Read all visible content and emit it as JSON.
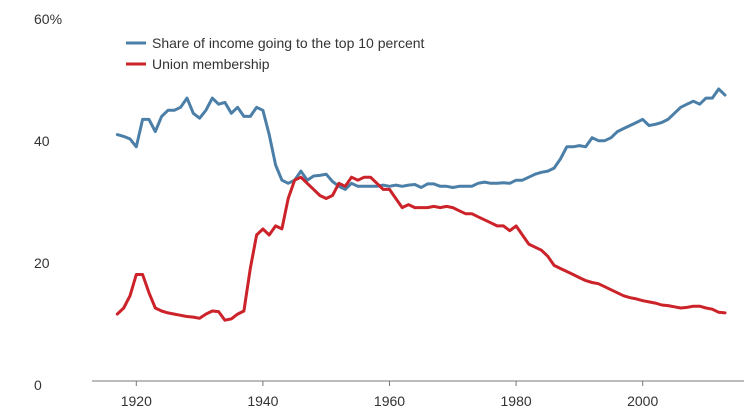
{
  "chart_data": {
    "type": "line",
    "xlim": [
      1913,
      2016
    ],
    "ylim": [
      0,
      60
    ],
    "xticks": [
      1920,
      1940,
      1960,
      1980,
      2000
    ],
    "xtick_labels": [
      "1920",
      "1940",
      "1960",
      "1980",
      "2000"
    ],
    "yticks": [
      0,
      20,
      40,
      60
    ],
    "ytick_labels": [
      "0",
      "20",
      "40",
      "60%"
    ],
    "grid": false,
    "legend_position": "top-left",
    "series": [
      {
        "name": "Share of income going to the top 10 percent",
        "color": "#4b7fa7",
        "points": [
          [
            1917,
            40.5
          ],
          [
            1918,
            40.2
          ],
          [
            1919,
            39.8
          ],
          [
            1920,
            38.5
          ],
          [
            1921,
            43.0
          ],
          [
            1922,
            43.0
          ],
          [
            1923,
            41.0
          ],
          [
            1924,
            43.5
          ],
          [
            1925,
            44.5
          ],
          [
            1926,
            44.5
          ],
          [
            1927,
            45.0
          ],
          [
            1928,
            46.5
          ],
          [
            1929,
            44.0
          ],
          [
            1930,
            43.2
          ],
          [
            1931,
            44.5
          ],
          [
            1932,
            46.5
          ],
          [
            1933,
            45.5
          ],
          [
            1934,
            45.8
          ],
          [
            1935,
            44.0
          ],
          [
            1936,
            45.0
          ],
          [
            1937,
            43.5
          ],
          [
            1938,
            43.5
          ],
          [
            1939,
            45.0
          ],
          [
            1940,
            44.5
          ],
          [
            1941,
            40.5
          ],
          [
            1942,
            35.5
          ],
          [
            1943,
            33.0
          ],
          [
            1944,
            32.5
          ],
          [
            1945,
            33.0
          ],
          [
            1946,
            34.5
          ],
          [
            1947,
            33.0
          ],
          [
            1948,
            33.7
          ],
          [
            1949,
            33.8
          ],
          [
            1950,
            34.0
          ],
          [
            1951,
            32.8
          ],
          [
            1952,
            32.0
          ],
          [
            1953,
            31.5
          ],
          [
            1954,
            32.5
          ],
          [
            1955,
            32.0
          ],
          [
            1956,
            32.0
          ],
          [
            1957,
            32.0
          ],
          [
            1958,
            32.0
          ],
          [
            1959,
            32.2
          ],
          [
            1960,
            32.0
          ],
          [
            1961,
            32.2
          ],
          [
            1962,
            32.0
          ],
          [
            1963,
            32.2
          ],
          [
            1964,
            32.3
          ],
          [
            1965,
            31.8
          ],
          [
            1966,
            32.4
          ],
          [
            1967,
            32.4
          ],
          [
            1968,
            32.0
          ],
          [
            1969,
            32.0
          ],
          [
            1970,
            31.8
          ],
          [
            1971,
            32.0
          ],
          [
            1972,
            32.0
          ],
          [
            1973,
            32.0
          ],
          [
            1974,
            32.5
          ],
          [
            1975,
            32.7
          ],
          [
            1976,
            32.5
          ],
          [
            1977,
            32.5
          ],
          [
            1978,
            32.6
          ],
          [
            1979,
            32.5
          ],
          [
            1980,
            33.0
          ],
          [
            1981,
            33.0
          ],
          [
            1982,
            33.5
          ],
          [
            1983,
            34.0
          ],
          [
            1984,
            34.3
          ],
          [
            1985,
            34.5
          ],
          [
            1986,
            35.0
          ],
          [
            1987,
            36.5
          ],
          [
            1988,
            38.5
          ],
          [
            1989,
            38.5
          ],
          [
            1990,
            38.7
          ],
          [
            1991,
            38.5
          ],
          [
            1992,
            40.0
          ],
          [
            1993,
            39.5
          ],
          [
            1994,
            39.5
          ],
          [
            1995,
            40.0
          ],
          [
            1996,
            41.0
          ],
          [
            1997,
            41.5
          ],
          [
            1998,
            42.0
          ],
          [
            1999,
            42.5
          ],
          [
            2000,
            43.0
          ],
          [
            2001,
            42.0
          ],
          [
            2002,
            42.2
          ],
          [
            2003,
            42.5
          ],
          [
            2004,
            43.0
          ],
          [
            2005,
            44.0
          ],
          [
            2006,
            45.0
          ],
          [
            2007,
            45.5
          ],
          [
            2008,
            46.0
          ],
          [
            2009,
            45.5
          ],
          [
            2010,
            46.5
          ],
          [
            2011,
            46.5
          ],
          [
            2012,
            48.0
          ],
          [
            2013,
            47.0
          ]
        ]
      },
      {
        "name": "Union membership",
        "color": "#cc2229",
        "points": [
          [
            1917,
            11.0
          ],
          [
            1918,
            12.0
          ],
          [
            1919,
            14.0
          ],
          [
            1920,
            17.5
          ],
          [
            1921,
            17.5
          ],
          [
            1922,
            14.5
          ],
          [
            1923,
            12.0
          ],
          [
            1924,
            11.5
          ],
          [
            1925,
            11.2
          ],
          [
            1926,
            11.0
          ],
          [
            1927,
            10.8
          ],
          [
            1928,
            10.6
          ],
          [
            1929,
            10.5
          ],
          [
            1930,
            10.3
          ],
          [
            1931,
            11.0
          ],
          [
            1932,
            11.5
          ],
          [
            1933,
            11.4
          ],
          [
            1934,
            10.0
          ],
          [
            1935,
            10.2
          ],
          [
            1936,
            11.0
          ],
          [
            1937,
            11.5
          ],
          [
            1938,
            18.5
          ],
          [
            1939,
            24.0
          ],
          [
            1940,
            25.0
          ],
          [
            1941,
            24.0
          ],
          [
            1942,
            25.5
          ],
          [
            1943,
            25.0
          ],
          [
            1944,
            30.0
          ],
          [
            1945,
            33.0
          ],
          [
            1946,
            33.5
          ],
          [
            1947,
            32.5
          ],
          [
            1948,
            31.5
          ],
          [
            1949,
            30.5
          ],
          [
            1950,
            30.0
          ],
          [
            1951,
            30.5
          ],
          [
            1952,
            32.5
          ],
          [
            1953,
            32.0
          ],
          [
            1954,
            33.5
          ],
          [
            1955,
            33.0
          ],
          [
            1956,
            33.5
          ],
          [
            1957,
            33.5
          ],
          [
            1958,
            32.5
          ],
          [
            1959,
            31.5
          ],
          [
            1960,
            31.5
          ],
          [
            1961,
            30.0
          ],
          [
            1962,
            28.5
          ],
          [
            1963,
            29.0
          ],
          [
            1964,
            28.5
          ],
          [
            1965,
            28.5
          ],
          [
            1966,
            28.5
          ],
          [
            1967,
            28.7
          ],
          [
            1968,
            28.5
          ],
          [
            1969,
            28.7
          ],
          [
            1970,
            28.5
          ],
          [
            1971,
            28.0
          ],
          [
            1972,
            27.5
          ],
          [
            1973,
            27.5
          ],
          [
            1974,
            27.0
          ],
          [
            1975,
            26.5
          ],
          [
            1976,
            26.0
          ],
          [
            1977,
            25.5
          ],
          [
            1978,
            25.5
          ],
          [
            1979,
            24.7
          ],
          [
            1980,
            25.5
          ],
          [
            1981,
            24.0
          ],
          [
            1982,
            22.5
          ],
          [
            1983,
            22.0
          ],
          [
            1984,
            21.5
          ],
          [
            1985,
            20.5
          ],
          [
            1986,
            19.0
          ],
          [
            1987,
            18.5
          ],
          [
            1988,
            18.0
          ],
          [
            1989,
            17.5
          ],
          [
            1990,
            17.0
          ],
          [
            1991,
            16.5
          ],
          [
            1992,
            16.2
          ],
          [
            1993,
            16.0
          ],
          [
            1994,
            15.5
          ],
          [
            1995,
            15.0
          ],
          [
            1996,
            14.5
          ],
          [
            1997,
            14.0
          ],
          [
            1998,
            13.7
          ],
          [
            1999,
            13.5
          ],
          [
            2000,
            13.2
          ],
          [
            2001,
            13.0
          ],
          [
            2002,
            12.8
          ],
          [
            2003,
            12.5
          ],
          [
            2004,
            12.4
          ],
          [
            2005,
            12.2
          ],
          [
            2006,
            12.0
          ],
          [
            2007,
            12.1
          ],
          [
            2008,
            12.3
          ],
          [
            2009,
            12.3
          ],
          [
            2010,
            12.0
          ],
          [
            2011,
            11.8
          ],
          [
            2012,
            11.3
          ],
          [
            2013,
            11.2
          ]
        ]
      }
    ]
  }
}
